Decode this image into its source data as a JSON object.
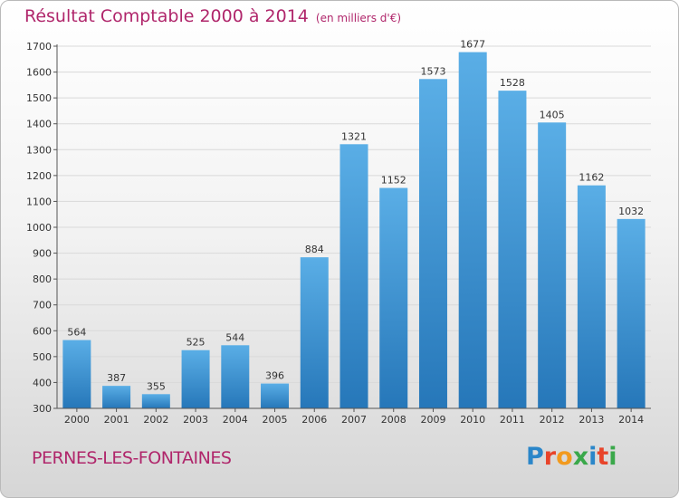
{
  "header": {
    "title": "Résultat Comptable 2000 à 2014",
    "unit": "(en milliers d'€)"
  },
  "footer": {
    "city": "PERNES-LES-FONTAINES",
    "logo_letters": [
      "P",
      "r",
      "o",
      "x",
      "i",
      "t",
      "i"
    ],
    "logo_colors": [
      "#2a86c9",
      "#e8442a",
      "#f29a1e",
      "#3aa84a",
      "#2a86c9",
      "#e8442a",
      "#3aa84a"
    ]
  },
  "colors": {
    "title": "#b0266b",
    "bar_top": "#5aaee6",
    "bar_bottom": "#2677b9",
    "grid": "#d9d9d9",
    "axis": "#555555"
  },
  "chart_data": {
    "type": "bar",
    "categories": [
      "2000",
      "2001",
      "2002",
      "2003",
      "2004",
      "2005",
      "2006",
      "2007",
      "2008",
      "2009",
      "2010",
      "2011",
      "2012",
      "2013",
      "2014"
    ],
    "values": [
      564,
      387,
      355,
      525,
      544,
      396,
      884,
      1321,
      1152,
      1573,
      1677,
      1528,
      1405,
      1162,
      1032
    ],
    "ylim": [
      300,
      1700
    ],
    "yticks": [
      300,
      400,
      500,
      600,
      700,
      800,
      900,
      1000,
      1100,
      1200,
      1300,
      1400,
      1500,
      1600,
      1700
    ],
    "grid": true,
    "title": "Résultat Comptable 2000 à 2014",
    "xlabel": "",
    "ylabel": ""
  }
}
